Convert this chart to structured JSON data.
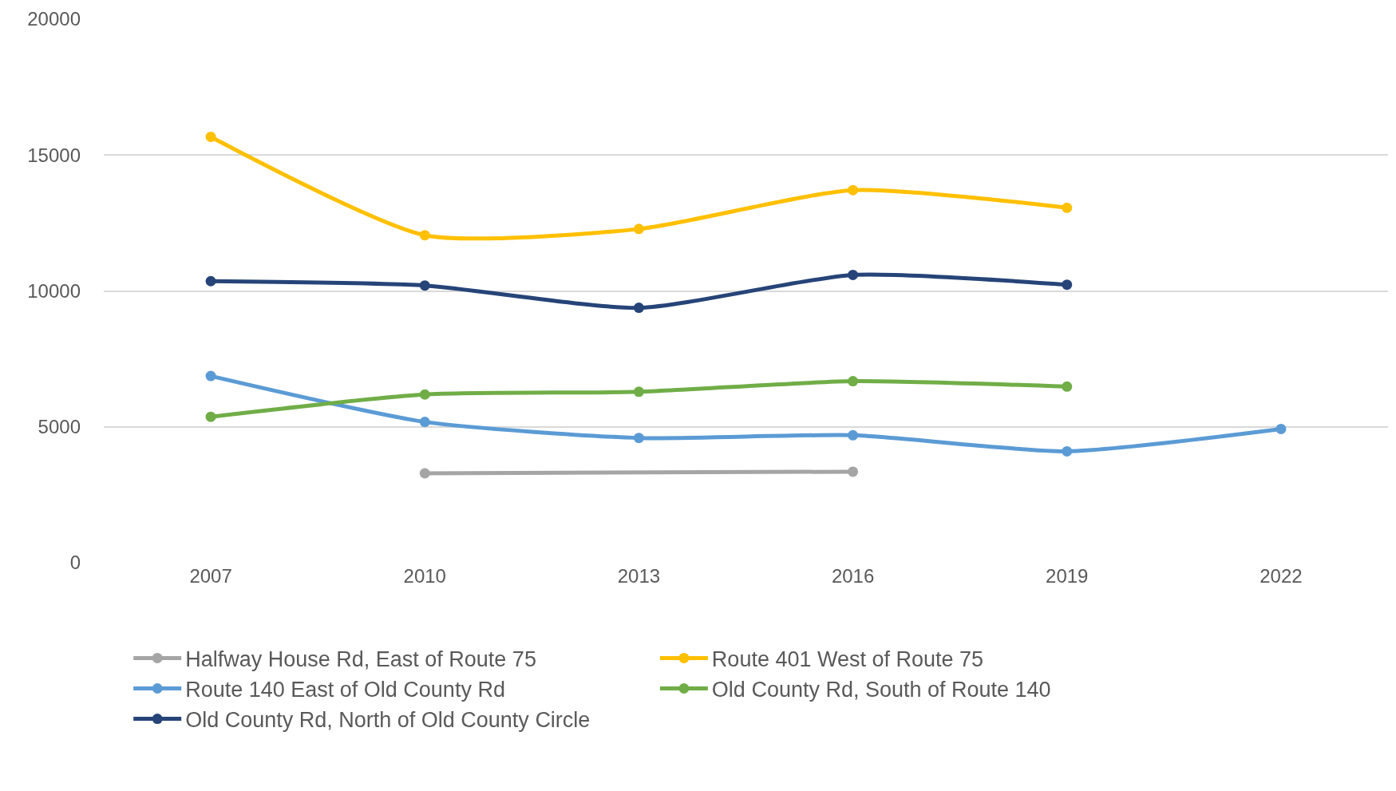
{
  "chart_data": {
    "type": "line",
    "categories": [
      "2007",
      "2010",
      "2013",
      "2016",
      "2019",
      "2022"
    ],
    "series": [
      {
        "name": "Halfway House Rd, East of Route 75",
        "color": "#a5a5a5",
        "values": [
          null,
          3290,
          null,
          3350,
          null,
          null
        ]
      },
      {
        "name": "Route 401 West of Route 75",
        "color": "#ffc000",
        "values": [
          15670,
          12050,
          12280,
          13710,
          13060,
          null
        ]
      },
      {
        "name": "Route 140 East of Old County Rd",
        "color": "#5b9bd5",
        "values": [
          6870,
          5180,
          4590,
          4690,
          4100,
          4920
        ]
      },
      {
        "name": "Old County Rd, South of Route 140",
        "color": "#70ad47",
        "values": [
          5370,
          6190,
          6290,
          6680,
          6480,
          null
        ]
      },
      {
        "name": "Old County Rd, North of Old County Circle",
        "color": "#264478",
        "values": [
          10360,
          10200,
          9380,
          10590,
          10230,
          null
        ]
      }
    ],
    "ylim": [
      0,
      20000
    ],
    "yticks": [
      0,
      5000,
      10000,
      15000,
      20000
    ],
    "grid": "y",
    "legend": "bottom",
    "marker": "circle",
    "line_style": "solid"
  }
}
